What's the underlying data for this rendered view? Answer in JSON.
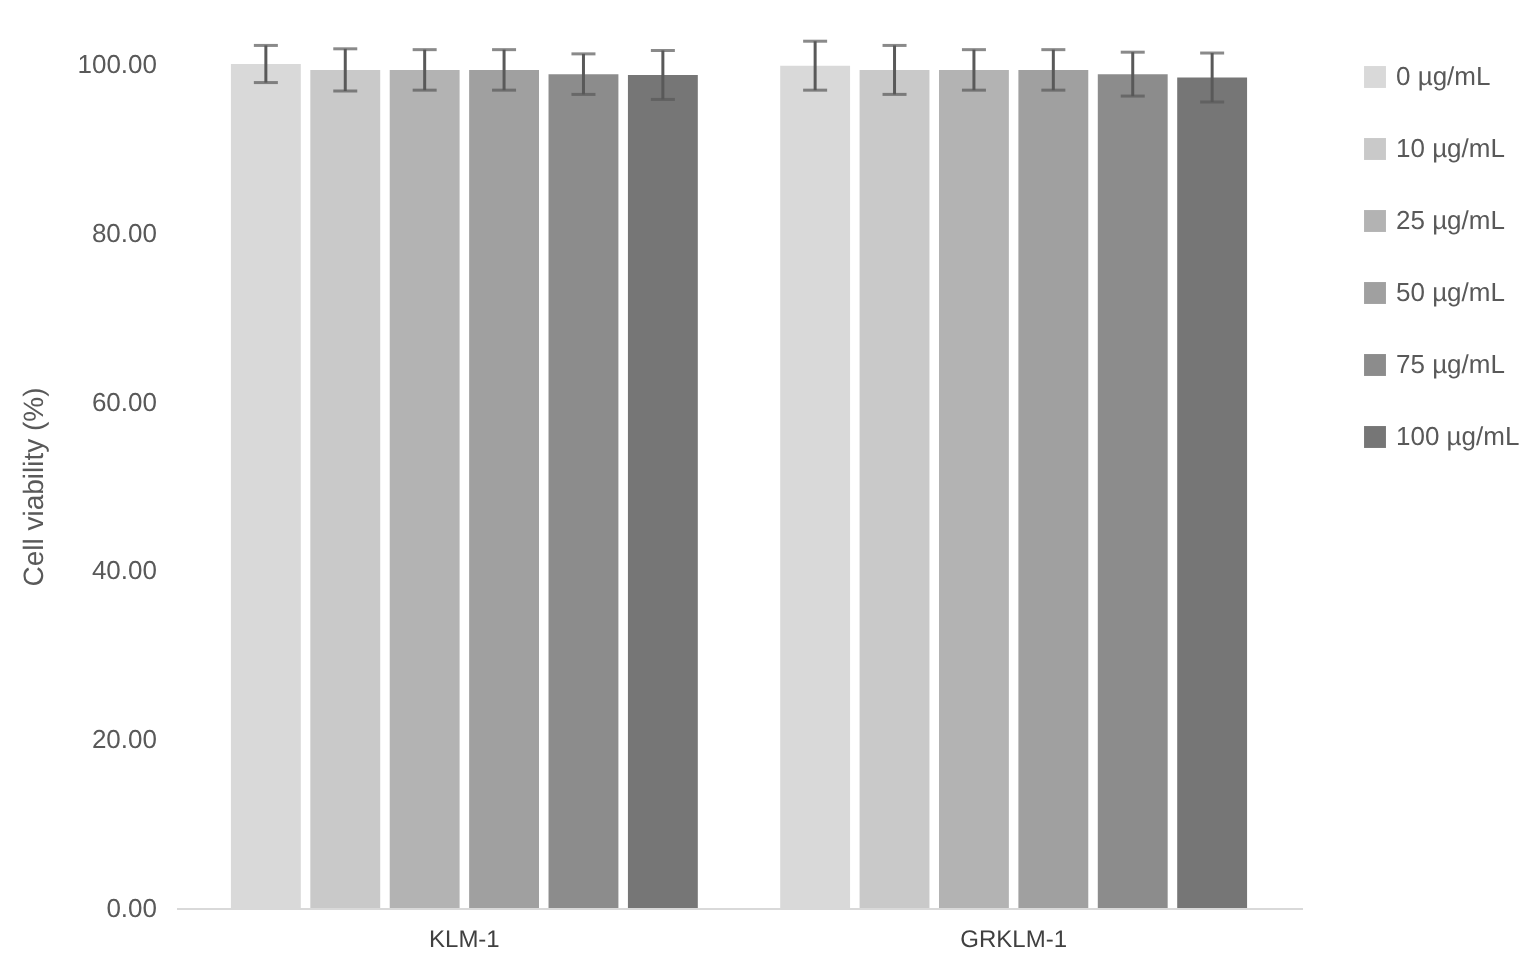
{
  "chart_data": {
    "type": "bar",
    "ylabel": "Cell viability (%)",
    "categories": [
      "KLM-1",
      "GRKLM-1"
    ],
    "series": [
      {
        "name": "0 µg/mL",
        "color": "#d9d9d9",
        "values": [
          100,
          99.8
        ],
        "errors": [
          2.2,
          2.9
        ]
      },
      {
        "name": "10 µg/mL",
        "color": "#c9c9c9",
        "values": [
          99.3,
          99.3
        ],
        "errors": [
          2.5,
          2.9
        ]
      },
      {
        "name": "25 µg/mL",
        "color": "#b3b3b3",
        "values": [
          99.3,
          99.3
        ],
        "errors": [
          2.4,
          2.4
        ]
      },
      {
        "name": "50 µg/mL",
        "color": "#a0a0a0",
        "values": [
          99.3,
          99.3
        ],
        "errors": [
          2.4,
          2.4
        ]
      },
      {
        "name": "75 µg/mL",
        "color": "#8c8c8c",
        "values": [
          98.8,
          98.8
        ],
        "errors": [
          2.4,
          2.6
        ]
      },
      {
        "name": "100 µg/mL",
        "color": "#767676",
        "values": [
          98.7,
          98.4
        ],
        "errors": [
          2.9,
          2.9
        ]
      }
    ],
    "ylim": [
      0,
      100
    ],
    "yticks": [
      {
        "value": 0,
        "label": "0.00"
      },
      {
        "value": 20,
        "label": "20.00"
      },
      {
        "value": 40,
        "label": "40.00"
      },
      {
        "value": 60,
        "label": "60.00"
      },
      {
        "value": 80,
        "label": "80.00"
      },
      {
        "value": 100,
        "label": "100.00"
      }
    ],
    "grid": false,
    "legend": "right"
  }
}
